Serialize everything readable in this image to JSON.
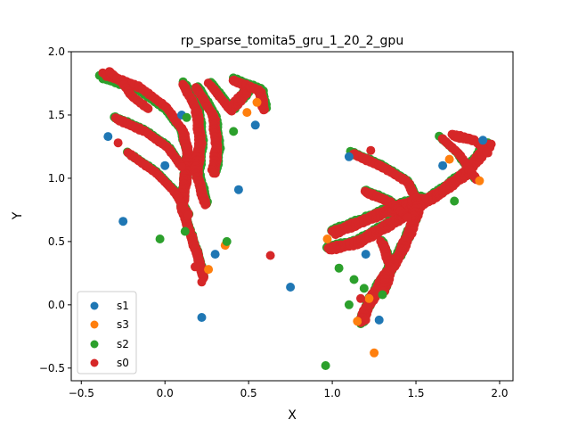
{
  "chart_data": {
    "type": "scatter",
    "title": "rp_sparse_tomita5_gru_1_20_2_gpu",
    "xlabel": "X",
    "ylabel": "Y",
    "xlim": [
      -0.56,
      2.08
    ],
    "ylim": [
      -0.6,
      2.0
    ],
    "xticks": [
      "−0.5",
      "0.0",
      "0.5",
      "1.0",
      "1.5",
      "2.0"
    ],
    "xtick_values": [
      -0.5,
      0.0,
      0.5,
      1.0,
      1.5,
      2.0
    ],
    "yticks": [
      "−0.5",
      "0.0",
      "0.5",
      "1.0",
      "1.5",
      "2.0"
    ],
    "ytick_values": [
      -0.5,
      0.0,
      0.5,
      1.0,
      1.5,
      2.0
    ],
    "grid": false,
    "legend_position": "lower-left",
    "series": [
      {
        "name": "s1",
        "color": "#1f77b4",
        "points": [
          [
            -0.34,
            1.33
          ],
          [
            -0.25,
            0.66
          ],
          [
            0.22,
            -0.1
          ],
          [
            0.44,
            0.91
          ],
          [
            0.75,
            0.14
          ],
          [
            1.1,
            1.17
          ],
          [
            0.54,
            1.42
          ],
          [
            0.1,
            1.5
          ],
          [
            0.3,
            0.4
          ],
          [
            1.28,
            -0.12
          ],
          [
            1.66,
            1.1
          ],
          [
            1.9,
            1.3
          ],
          [
            1.2,
            0.4
          ],
          [
            0.0,
            1.1
          ]
        ]
      },
      {
        "name": "s3",
        "color": "#ff7f0e",
        "points": [
          [
            1.25,
            -0.38
          ],
          [
            0.36,
            0.47
          ],
          [
            0.55,
            1.6
          ],
          [
            1.15,
            -0.13
          ],
          [
            1.88,
            0.98
          ],
          [
            0.26,
            0.28
          ],
          [
            1.7,
            1.15
          ],
          [
            0.97,
            0.52
          ],
          [
            0.49,
            1.52
          ],
          [
            1.22,
            0.05
          ]
        ]
      },
      {
        "name": "s2",
        "color": "#2ca02c",
        "points": [
          [
            0.96,
            -0.48
          ],
          [
            -0.03,
            0.52
          ],
          [
            0.37,
            0.5
          ],
          [
            1.13,
            0.2
          ],
          [
            1.3,
            0.08
          ],
          [
            1.19,
            0.13
          ],
          [
            1.04,
            0.29
          ],
          [
            0.41,
            1.37
          ],
          [
            1.73,
            0.82
          ],
          [
            0.12,
            0.58
          ],
          [
            0.13,
            1.48
          ],
          [
            1.1,
            0.0
          ]
        ]
      },
      {
        "name": "s0",
        "color": "#d62728",
        "points": [
          [
            0.22,
            0.18
          ],
          [
            0.18,
            0.3
          ],
          [
            1.2,
            -0.12
          ],
          [
            1.17,
            0.05
          ],
          [
            -0.28,
            1.28
          ],
          [
            0.98,
            0.45
          ],
          [
            0.63,
            0.39
          ],
          [
            1.23,
            1.22
          ],
          [
            1.95,
            1.27
          ],
          [
            1.75,
            1.32
          ]
        ]
      }
    ],
    "clusters": [
      {
        "series": "s2",
        "paths": [
          [
            [
              -0.38,
              1.8
            ],
            [
              -0.16,
              1.7
            ],
            [
              0.0,
              1.55
            ],
            [
              0.1,
              1.38
            ],
            [
              0.14,
              1.18
            ],
            [
              0.12,
              0.98
            ],
            [
              0.1,
              0.78
            ],
            [
              0.15,
              0.58
            ],
            [
              0.2,
              0.38
            ],
            [
              0.23,
              0.22
            ]
          ],
          [
            [
              -0.3,
              1.48
            ],
            [
              -0.12,
              1.38
            ],
            [
              0.02,
              1.25
            ],
            [
              0.1,
              1.1
            ]
          ],
          [
            [
              -0.22,
              1.2
            ],
            [
              -0.05,
              1.05
            ],
            [
              0.06,
              0.9
            ],
            [
              0.14,
              0.72
            ]
          ],
          [
            [
              0.12,
              1.75
            ],
            [
              0.2,
              1.55
            ],
            [
              0.22,
              1.3
            ],
            [
              0.2,
              1.05
            ],
            [
              0.25,
              0.8
            ]
          ],
          [
            [
              0.2,
              1.72
            ],
            [
              0.3,
              1.5
            ],
            [
              0.32,
              1.25
            ],
            [
              0.3,
              1.05
            ]
          ],
          [
            [
              0.28,
              1.75
            ],
            [
              0.4,
              1.55
            ],
            [
              0.5,
              1.7
            ]
          ],
          [
            [
              0.42,
              1.78
            ],
            [
              0.58,
              1.7
            ],
            [
              0.6,
              1.55
            ]
          ],
          [
            [
              0.97,
              0.45
            ],
            [
              1.15,
              0.5
            ],
            [
              1.35,
              0.65
            ],
            [
              1.5,
              0.78
            ],
            [
              1.65,
              0.9
            ],
            [
              1.8,
              1.05
            ],
            [
              1.93,
              1.28
            ]
          ],
          [
            [
              1.0,
              0.58
            ],
            [
              1.2,
              0.68
            ],
            [
              1.38,
              0.78
            ],
            [
              1.55,
              0.85
            ]
          ],
          [
            [
              1.12,
              1.2
            ],
            [
              1.3,
              1.1
            ],
            [
              1.45,
              0.98
            ],
            [
              1.52,
              0.8
            ],
            [
              1.47,
              0.6
            ],
            [
              1.4,
              0.4
            ],
            [
              1.3,
              0.2
            ],
            [
              1.22,
              0.02
            ],
            [
              1.17,
              -0.15
            ]
          ],
          [
            [
              1.2,
              0.9
            ],
            [
              1.35,
              0.82
            ],
            [
              1.45,
              0.7
            ]
          ],
          [
            [
              1.3,
              0.5
            ],
            [
              1.35,
              0.3
            ],
            [
              1.3,
              0.1
            ]
          ],
          [
            [
              1.65,
              1.32
            ],
            [
              1.75,
              1.2
            ],
            [
              1.85,
              1.0
            ]
          ]
        ]
      },
      {
        "series": "s0",
        "paths": [
          [
            [
              -0.36,
              1.82
            ],
            [
              -0.15,
              1.72
            ],
            [
              0.01,
              1.56
            ],
            [
              0.11,
              1.37
            ],
            [
              0.14,
              1.17
            ],
            [
              0.12,
              0.97
            ],
            [
              0.1,
              0.77
            ],
            [
              0.15,
              0.57
            ],
            [
              0.2,
              0.37
            ],
            [
              0.23,
              0.21
            ]
          ],
          [
            [
              -0.33,
              1.84
            ],
            [
              -0.25,
              1.75
            ],
            [
              -0.2,
              1.65
            ],
            [
              -0.1,
              1.55
            ]
          ],
          [
            [
              -0.29,
              1.47
            ],
            [
              -0.12,
              1.37
            ],
            [
              0.02,
              1.24
            ],
            [
              0.1,
              1.09
            ]
          ],
          [
            [
              -0.21,
              1.19
            ],
            [
              -0.05,
              1.04
            ],
            [
              0.06,
              0.89
            ],
            [
              0.14,
              0.71
            ]
          ],
          [
            [
              0.11,
              1.74
            ],
            [
              0.19,
              1.54
            ],
            [
              0.21,
              1.29
            ],
            [
              0.19,
              1.04
            ],
            [
              0.24,
              0.79
            ]
          ],
          [
            [
              0.19,
              1.71
            ],
            [
              0.29,
              1.49
            ],
            [
              0.31,
              1.24
            ],
            [
              0.29,
              1.04
            ]
          ],
          [
            [
              0.27,
              1.74
            ],
            [
              0.39,
              1.54
            ],
            [
              0.49,
              1.69
            ]
          ],
          [
            [
              0.41,
              1.77
            ],
            [
              0.57,
              1.69
            ],
            [
              0.59,
              1.54
            ]
          ],
          [
            [
              0.98,
              0.44
            ],
            [
              1.15,
              0.49
            ],
            [
              1.35,
              0.64
            ],
            [
              1.5,
              0.77
            ],
            [
              1.65,
              0.89
            ],
            [
              1.8,
              1.04
            ],
            [
              1.94,
              1.27
            ]
          ],
          [
            [
              1.01,
              0.57
            ],
            [
              1.2,
              0.67
            ],
            [
              1.38,
              0.77
            ],
            [
              1.55,
              0.84
            ]
          ],
          [
            [
              1.13,
              1.19
            ],
            [
              1.3,
              1.09
            ],
            [
              1.45,
              0.97
            ],
            [
              1.52,
              0.79
            ],
            [
              1.47,
              0.59
            ],
            [
              1.4,
              0.39
            ],
            [
              1.3,
              0.19
            ],
            [
              1.22,
              0.01
            ],
            [
              1.17,
              -0.14
            ]
          ],
          [
            [
              1.2,
              0.89
            ],
            [
              1.35,
              0.81
            ],
            [
              1.45,
              0.69
            ]
          ],
          [
            [
              1.3,
              0.49
            ],
            [
              1.35,
              0.29
            ],
            [
              1.3,
              0.09
            ]
          ],
          [
            [
              1.66,
              1.31
            ],
            [
              1.76,
              1.19
            ],
            [
              1.86,
              0.99
            ]
          ],
          [
            [
              1.72,
              1.34
            ],
            [
              1.85,
              1.3
            ],
            [
              1.93,
              1.2
            ]
          ]
        ]
      }
    ]
  }
}
